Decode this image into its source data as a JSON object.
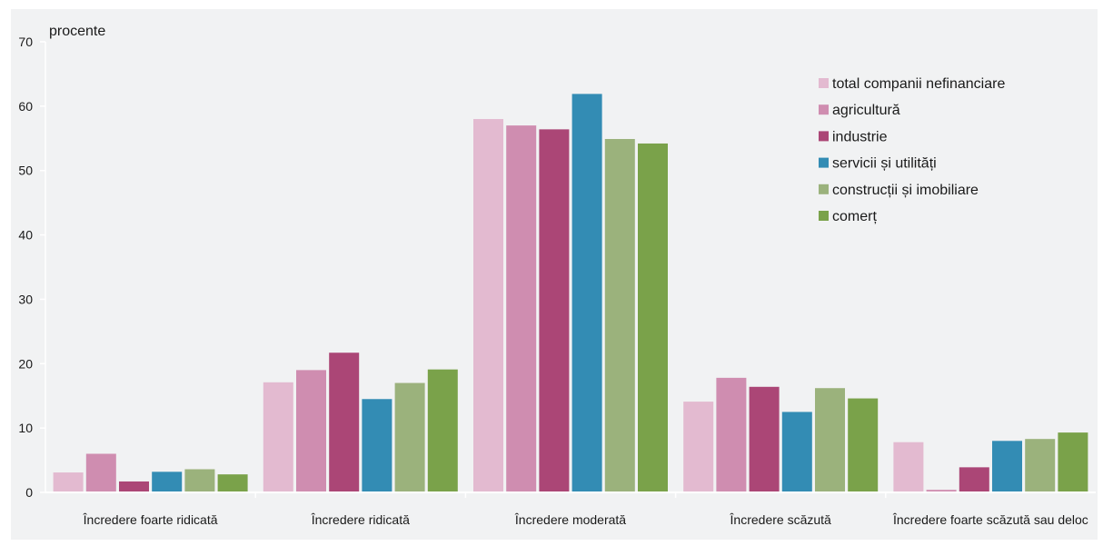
{
  "chart_data": {
    "type": "bar",
    "unit_label": "procente",
    "ylim": [
      0,
      70
    ],
    "yticks": [
      0,
      10,
      20,
      30,
      40,
      50,
      60,
      70
    ],
    "grid": false,
    "legend_position": "top-right",
    "categories": [
      "Încredere foarte ridicată",
      "Încredere ridicată",
      "Încredere moderată",
      "Încredere scăzută",
      "Încredere foarte scăzută sau deloc"
    ],
    "series": [
      {
        "name": "total companii nefinanciare",
        "color": "#e3bad0",
        "values": [
          3.1,
          17.1,
          58.0,
          14.1,
          7.8
        ]
      },
      {
        "name": "agricultură",
        "color": "#cf8db0",
        "values": [
          6.0,
          19.0,
          57.0,
          17.8,
          0.4
        ]
      },
      {
        "name": "industrie",
        "color": "#ab4676",
        "values": [
          1.7,
          21.7,
          56.4,
          16.4,
          3.9
        ]
      },
      {
        "name": "servicii și utilități",
        "color": "#338cb4",
        "values": [
          3.2,
          14.5,
          61.9,
          12.5,
          8.0
        ]
      },
      {
        "name": "construcții și imobiliare",
        "color": "#9bb27c",
        "values": [
          3.6,
          17.0,
          54.9,
          16.2,
          8.3
        ]
      },
      {
        "name": "comerț",
        "color": "#7aa24a",
        "values": [
          2.8,
          19.1,
          54.2,
          14.6,
          9.3
        ]
      }
    ]
  }
}
